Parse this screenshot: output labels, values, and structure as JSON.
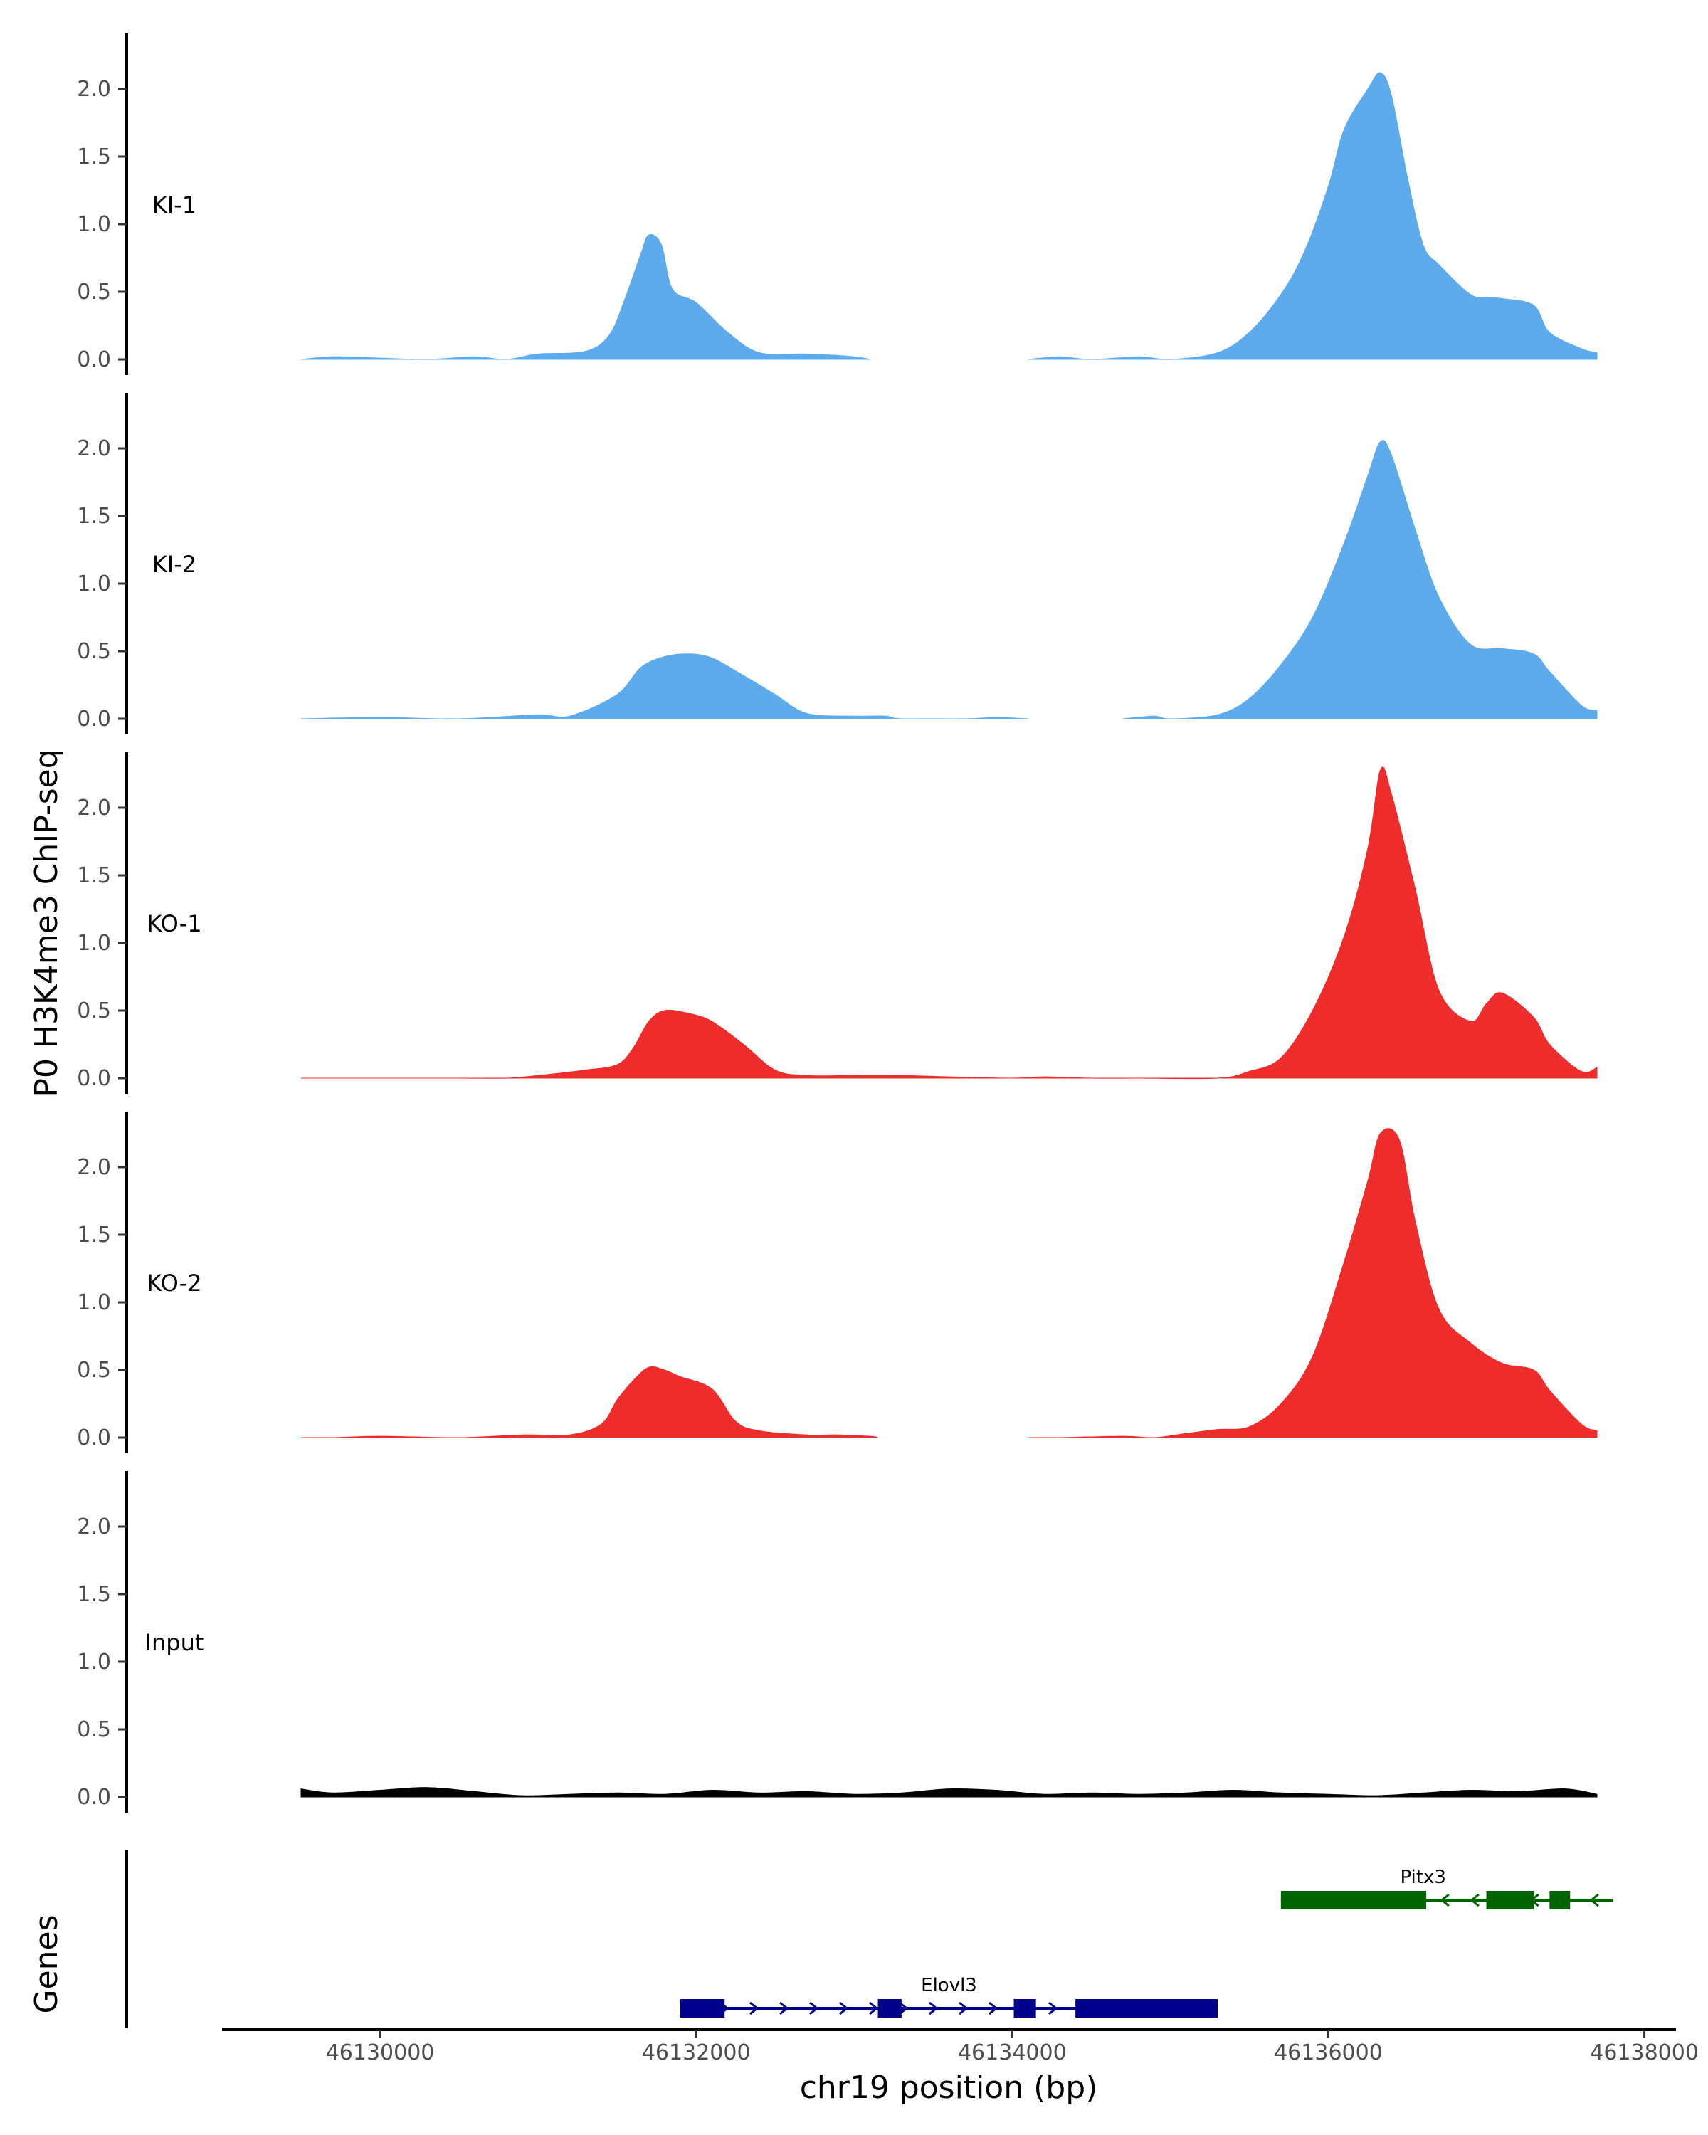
{
  "chart_data": {
    "type": "area",
    "ylabel": "P0 H3K4me3 ChIP-seq",
    "xlabel": "chr19 position (bp)",
    "xlim": [
      46129000,
      46138200
    ],
    "ylim": [
      0,
      2.4
    ],
    "y_ticks": [
      "0.0",
      "0.5",
      "1.0",
      "1.5",
      "2.0"
    ],
    "x_ticks": [
      "46130000",
      "46132000",
      "46134000",
      "46136000",
      "46138000"
    ],
    "colors": {
      "KI": "#5DABEC",
      "KO": "#EE2C2C",
      "Input": "#000000",
      "Pitx3": "#006400",
      "Elovl3": "#00008B"
    },
    "tracks": [
      {
        "name": "KI-1",
        "color": "#5DABEC",
        "x": [
          46129500,
          46129700,
          46130000,
          46130300,
          46130600,
          46130800,
          46131000,
          46131300,
          46131450,
          46131550,
          46131650,
          46131700,
          46131780,
          46131850,
          46132000,
          46132200,
          46132400,
          46132700,
          46133000,
          46133100,
          46134100,
          46134300,
          46134500,
          46134800,
          46135000,
          46135300,
          46135500,
          46135700,
          46135850,
          46136000,
          46136100,
          46136250,
          46136330,
          46136400,
          46136500,
          46136600,
          46136700,
          46136900,
          46137000,
          46137100,
          46137300,
          46137400,
          46137600,
          46137700
        ],
        "y": [
          0.0,
          0.02,
          0.01,
          0.0,
          0.02,
          0.0,
          0.04,
          0.06,
          0.18,
          0.45,
          0.78,
          0.92,
          0.85,
          0.52,
          0.42,
          0.2,
          0.05,
          0.04,
          0.02,
          0.0,
          0.0,
          0.02,
          0.0,
          0.02,
          0.0,
          0.05,
          0.2,
          0.48,
          0.8,
          1.28,
          1.7,
          2.0,
          2.12,
          1.95,
          1.35,
          0.85,
          0.7,
          0.48,
          0.46,
          0.45,
          0.4,
          0.2,
          0.08,
          0.05
        ]
      },
      {
        "name": "KI-2",
        "color": "#5DABEC",
        "x": [
          46129500,
          46130000,
          46130500,
          46131000,
          46131200,
          46131500,
          46131650,
          46131800,
          46131950,
          46132100,
          46132300,
          46132500,
          46132700,
          46133000,
          46133200,
          46133300,
          46133700,
          46133900,
          46134100,
          46134700,
          46134900,
          46135000,
          46135300,
          46135500,
          46135700,
          46135900,
          46136100,
          46136250,
          46136330,
          46136400,
          46136550,
          46136700,
          46136900,
          46137100,
          46137300,
          46137400,
          46137600,
          46137700
        ],
        "y": [
          0.0,
          0.01,
          0.0,
          0.03,
          0.02,
          0.18,
          0.38,
          0.46,
          0.48,
          0.45,
          0.32,
          0.18,
          0.04,
          0.02,
          0.02,
          0.0,
          0.0,
          0.01,
          0.0,
          0.0,
          0.02,
          0.0,
          0.03,
          0.15,
          0.4,
          0.75,
          1.3,
          1.8,
          2.05,
          1.95,
          1.4,
          0.9,
          0.55,
          0.52,
          0.48,
          0.35,
          0.1,
          0.06
        ]
      },
      {
        "name": "KO-1",
        "color": "#EE2C2C",
        "x": [
          46129500,
          46129600,
          46130000,
          46130500,
          46130800,
          46131000,
          46131300,
          46131500,
          46131600,
          46131700,
          46131800,
          46131950,
          46132100,
          46132300,
          46132500,
          46132700,
          46133000,
          46133300,
          46133600,
          46134000,
          46134200,
          46134500,
          46134800,
          46135300,
          46135500,
          46135700,
          46135900,
          46136100,
          46136250,
          46136330,
          46136400,
          46136550,
          46136700,
          46136900,
          46137000,
          46137100,
          46137300,
          46137400,
          46137600,
          46137700
        ],
        "y": [
          0.0,
          0.0,
          0.0,
          0.0,
          0.0,
          0.02,
          0.06,
          0.1,
          0.22,
          0.42,
          0.5,
          0.48,
          0.42,
          0.25,
          0.06,
          0.02,
          0.02,
          0.02,
          0.01,
          0.0,
          0.01,
          0.0,
          0.0,
          0.0,
          0.05,
          0.15,
          0.5,
          1.05,
          1.7,
          2.28,
          2.1,
          1.4,
          0.65,
          0.42,
          0.55,
          0.63,
          0.45,
          0.25,
          0.05,
          0.08
        ]
      },
      {
        "name": "KO-2",
        "color": "#EE2C2C",
        "x": [
          46129500,
          46129700,
          46130000,
          46130500,
          46130900,
          46131200,
          46131400,
          46131500,
          46131600,
          46131700,
          46131800,
          46131900,
          46132100,
          46132250,
          46132400,
          46132700,
          46132900,
          46133100,
          46133150,
          46134100,
          46134300,
          46134700,
          46134900,
          46135100,
          46135300,
          46135500,
          46135700,
          46135900,
          46136100,
          46136250,
          46136330,
          46136450,
          46136550,
          46136700,
          46136900,
          46137100,
          46137300,
          46137400,
          46137600,
          46137700
        ],
        "y": [
          0.0,
          0.0,
          0.01,
          0.0,
          0.02,
          0.02,
          0.1,
          0.28,
          0.42,
          0.52,
          0.5,
          0.45,
          0.36,
          0.12,
          0.05,
          0.02,
          0.02,
          0.01,
          0.0,
          0.0,
          0.0,
          0.01,
          0.0,
          0.03,
          0.06,
          0.08,
          0.25,
          0.6,
          1.3,
          1.9,
          2.25,
          2.2,
          1.6,
          0.95,
          0.7,
          0.55,
          0.5,
          0.35,
          0.1,
          0.05
        ]
      },
      {
        "name": "Input",
        "color": "#000000",
        "x": [
          46129500,
          46129700,
          46130000,
          46130300,
          46130600,
          46130900,
          46131200,
          46131500,
          46131800,
          46132100,
          46132400,
          46132700,
          46133000,
          46133300,
          46133600,
          46133900,
          46134200,
          46134500,
          46134800,
          46135100,
          46135400,
          46135700,
          46136000,
          46136300,
          46136600,
          46136900,
          46137200,
          46137500,
          46137700
        ],
        "y": [
          0.06,
          0.03,
          0.05,
          0.07,
          0.04,
          0.01,
          0.02,
          0.03,
          0.02,
          0.05,
          0.03,
          0.04,
          0.02,
          0.03,
          0.06,
          0.05,
          0.02,
          0.03,
          0.02,
          0.03,
          0.05,
          0.03,
          0.02,
          0.01,
          0.03,
          0.05,
          0.04,
          0.06,
          0.02
        ]
      }
    ],
    "genes_track_label": "Genes",
    "genes": [
      {
        "name": "Pitx3",
        "color": "#006400",
        "strand": "-",
        "start": 46135700,
        "end": 46137800,
        "exons": [
          [
            46135700,
            46136620
          ],
          [
            46137000,
            46137300
          ],
          [
            46137400,
            46137530
          ]
        ]
      },
      {
        "name": "Elovl3",
        "color": "#00008B",
        "strand": "+",
        "start": 46131900,
        "end": 46135300,
        "exons": [
          [
            46131900,
            46132180
          ],
          [
            46133150,
            46133300
          ],
          [
            46134010,
            46134150
          ],
          [
            46134400,
            46135300
          ]
        ]
      }
    ]
  }
}
